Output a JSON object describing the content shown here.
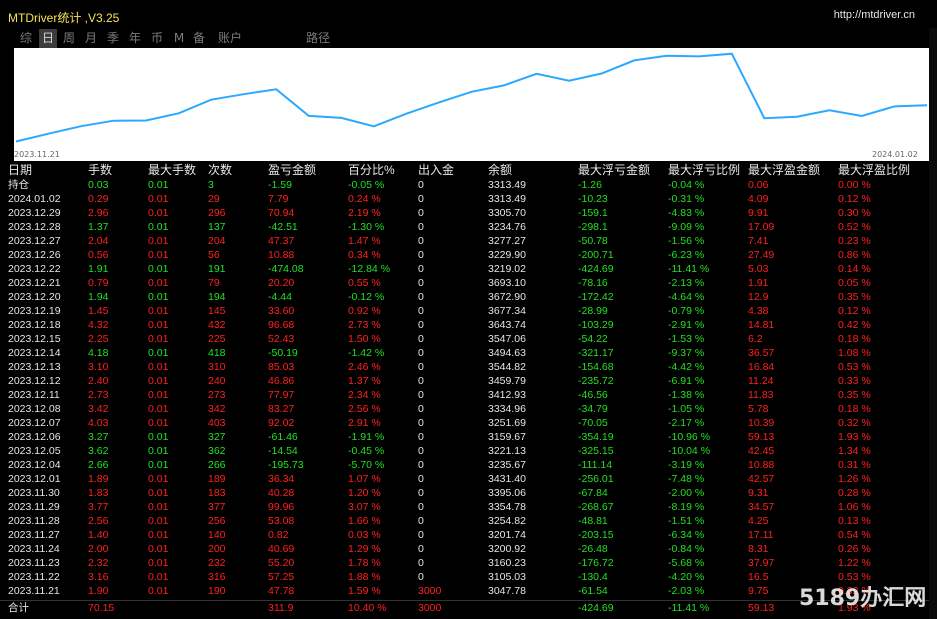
{
  "window": {
    "title": "MTDriver统计 ,V3.25",
    "url": "http://mtdriver.cn"
  },
  "tabs": [
    "综",
    "日",
    "周",
    "月",
    "季",
    "年",
    "币",
    "M",
    "备",
    "账户",
    "路径"
  ],
  "active_tab": "日",
  "chart": {
    "start_label": "2023.11.21",
    "end_label": "2024.01.02",
    "line_color": "#2aa9ff",
    "balance_values": [
      3047.78,
      3105.03,
      3160.23,
      3200.92,
      3201.74,
      3254.82,
      3354.78,
      3395.06,
      3431.4,
      3235.67,
      3221.13,
      3159.67,
      3251.69,
      3334.96,
      3412.93,
      3459.79,
      3544.82,
      3494.63,
      3547.06,
      3643.74,
      3677.34,
      3672.9,
      3693.1,
      3219.02,
      3229.9,
      3277.27,
      3234.76,
      3305.7,
      3313.49
    ]
  },
  "columns": [
    "日期",
    "手数",
    "最大手数",
    "次数",
    "盈亏金额",
    "百分比%",
    "出入金",
    "余额",
    "最大浮亏金额",
    "最大浮亏比例",
    "最大浮盈金额",
    "最大浮盈比例"
  ],
  "holding": {
    "label": "持仓",
    "lots": "0.03",
    "max_lots": "0.01",
    "count": "3",
    "pnl": "-1.59",
    "pct": "-0.05 %",
    "inout": "0",
    "balance": "3313.49",
    "max_dd": "-1.26",
    "max_dd_pct": "-0.04 %",
    "max_fp": "0.06",
    "max_fp_pct": "0.00 %"
  },
  "rows": [
    [
      "2024.01.02",
      "0.29",
      "0.01",
      "29",
      "7.79",
      "0.24 %",
      "0",
      "3313.49",
      "-10.23",
      "-0.31 %",
      "4.09",
      "0.12 %"
    ],
    [
      "2023.12.29",
      "2.96",
      "0.01",
      "296",
      "70.94",
      "2.19 %",
      "0",
      "3305.70",
      "-159.1",
      "-4.83 %",
      "9.91",
      "0.30 %"
    ],
    [
      "2023.12.28",
      "1.37",
      "0.01",
      "137",
      "-42.51",
      "-1.30 %",
      "0",
      "3234.76",
      "-298.1",
      "-9.09 %",
      "17.09",
      "0.52 %"
    ],
    [
      "2023.12.27",
      "2.04",
      "0.01",
      "204",
      "47.37",
      "1.47 %",
      "0",
      "3277.27",
      "-50.78",
      "-1.56 %",
      "7.41",
      "0.23 %"
    ],
    [
      "2023.12.26",
      "0.56",
      "0.01",
      "56",
      "10.88",
      "0.34 %",
      "0",
      "3229.90",
      "-200.71",
      "-6.23 %",
      "27.49",
      "0.86 %"
    ],
    [
      "2023.12.22",
      "1.91",
      "0.01",
      "191",
      "-474.08",
      "-12.84 %",
      "0",
      "3219.02",
      "-424.69",
      "-11.41 %",
      "5.03",
      "0.14 %"
    ],
    [
      "2023.12.21",
      "0.79",
      "0.01",
      "79",
      "20.20",
      "0.55 %",
      "0",
      "3693.10",
      "-78.16",
      "-2.13 %",
      "1.91",
      "0.05 %"
    ],
    [
      "2023.12.20",
      "1.94",
      "0.01",
      "194",
      "-4.44",
      "-0.12 %",
      "0",
      "3672.90",
      "-172.42",
      "-4.64 %",
      "12.9",
      "0.35 %"
    ],
    [
      "2023.12.19",
      "1.45",
      "0.01",
      "145",
      "33.60",
      "0.92 %",
      "0",
      "3677.34",
      "-28.99",
      "-0.79 %",
      "4.38",
      "0.12 %"
    ],
    [
      "2023.12.18",
      "4.32",
      "0.01",
      "432",
      "96.68",
      "2.73 %",
      "0",
      "3643.74",
      "-103.29",
      "-2.91 %",
      "14.81",
      "0.42 %"
    ],
    [
      "2023.12.15",
      "2.25",
      "0.01",
      "225",
      "52.43",
      "1.50 %",
      "0",
      "3547.06",
      "-54.22",
      "-1.53 %",
      "6.2",
      "0.18 %"
    ],
    [
      "2023.12.14",
      "4.18",
      "0.01",
      "418",
      "-50.19",
      "-1.42 %",
      "0",
      "3494.63",
      "-321.17",
      "-9.37 %",
      "36.57",
      "1.08 %"
    ],
    [
      "2023.12.13",
      "3.10",
      "0.01",
      "310",
      "85.03",
      "2.46 %",
      "0",
      "3544.82",
      "-154.68",
      "-4.42 %",
      "16.84",
      "0.53 %"
    ],
    [
      "2023.12.12",
      "2.40",
      "0.01",
      "240",
      "46.86",
      "1.37 %",
      "0",
      "3459.79",
      "-235.72",
      "-6.91 %",
      "11.24",
      "0.33 %"
    ],
    [
      "2023.12.11",
      "2.73",
      "0.01",
      "273",
      "77.97",
      "2.34 %",
      "0",
      "3412.93",
      "-46.56",
      "-1.38 %",
      "11.83",
      "0.35 %"
    ],
    [
      "2023.12.08",
      "3.42",
      "0.01",
      "342",
      "83.27",
      "2.56 %",
      "0",
      "3334.96",
      "-34.79",
      "-1.05 %",
      "5.78",
      "0.18 %"
    ],
    [
      "2023.12.07",
      "4.03",
      "0.01",
      "403",
      "92.02",
      "2.91 %",
      "0",
      "3251.69",
      "-70.05",
      "-2.17 %",
      "10.39",
      "0.32 %"
    ],
    [
      "2023.12.06",
      "3.27",
      "0.01",
      "327",
      "-61.46",
      "-1.91 %",
      "0",
      "3159.67",
      "-354.19",
      "-10.96 %",
      "59.13",
      "1.93 %"
    ],
    [
      "2023.12.05",
      "3.62",
      "0.01",
      "362",
      "-14.54",
      "-0.45 %",
      "0",
      "3221.13",
      "-325.15",
      "-10.04 %",
      "42.45",
      "1.34 %"
    ],
    [
      "2023.12.04",
      "2.66",
      "0.01",
      "266",
      "-195.73",
      "-5.70 %",
      "0",
      "3235.67",
      "-111.14",
      "-3.19 %",
      "10.88",
      "0.31 %"
    ],
    [
      "2023.12.01",
      "1.89",
      "0.01",
      "189",
      "36.34",
      "1.07 %",
      "0",
      "3431.40",
      "-256.01",
      "-7.48 %",
      "42.57",
      "1.26 %"
    ],
    [
      "2023.11.30",
      "1.83",
      "0.01",
      "183",
      "40.28",
      "1.20 %",
      "0",
      "3395.06",
      "-67.84",
      "-2.00 %",
      "9.31",
      "0.28 %"
    ],
    [
      "2023.11.29",
      "3.77",
      "0.01",
      "377",
      "99.96",
      "3.07 %",
      "0",
      "3354.78",
      "-268.67",
      "-8.19 %",
      "34.57",
      "1.06 %"
    ],
    [
      "2023.11.28",
      "2.56",
      "0.01",
      "256",
      "53.08",
      "1.66 %",
      "0",
      "3254.82",
      "-48.81",
      "-1.51 %",
      "4.25",
      "0.13 %"
    ],
    [
      "2023.11.27",
      "1.40",
      "0.01",
      "140",
      "0.82",
      "0.03 %",
      "0",
      "3201.74",
      "-203.15",
      "-6.34 %",
      "17.11",
      "0.54 %"
    ],
    [
      "2023.11.24",
      "2.00",
      "0.01",
      "200",
      "40.69",
      "1.29 %",
      "0",
      "3200.92",
      "-26.48",
      "-0.84 %",
      "8.31",
      "0.26 %"
    ],
    [
      "2023.11.23",
      "2.32",
      "0.01",
      "232",
      "55.20",
      "1.78 %",
      "0",
      "3160.23",
      "-176.72",
      "-5.68 %",
      "37.97",
      "1.22 %"
    ],
    [
      "2023.11.22",
      "3.16",
      "0.01",
      "316",
      "57.25",
      "1.88 %",
      "0",
      "3105.03",
      "-130.4",
      "-4.20 %",
      "16.5",
      "0.53 %"
    ],
    [
      "2023.11.21",
      "1.90",
      "0.01",
      "190",
      "47.78",
      "1.59 %",
      "3000",
      "3047.78",
      "-61.54",
      "-2.03 %",
      "9.75",
      "0.32 %"
    ]
  ],
  "total": {
    "label": "合计",
    "lots": "70.15",
    "pnl": "311.9",
    "pct": "10.40 %",
    "inout": "3000",
    "max_dd": "-424.69",
    "max_dd_pct": "-11.41 %",
    "max_fp": "59.13",
    "max_fp_pct": "1.93 %"
  },
  "watermark": "5189办汇网",
  "colors": {
    "positive": "#ff2020",
    "negative": "#22e022",
    "text": "#e6e6e6",
    "title": "#f5e35a"
  }
}
